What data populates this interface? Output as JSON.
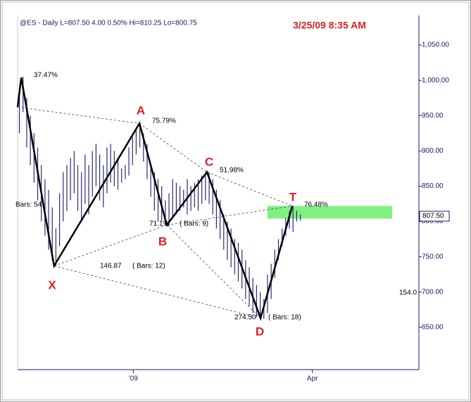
{
  "chart_data": {
    "type": "ohlc",
    "header": "@ES - Daily  L=807.50  4.00  0.50%  Hi=810.25  Lo=800.75",
    "timestamp": "3/25/09 8:35 AM",
    "xlim": [
      0,
      110
    ],
    "ylim": [
      590,
      1092
    ],
    "yticks": [
      {
        "value": 650,
        "label": "650.00"
      },
      {
        "value": 700,
        "label": "700.00"
      },
      {
        "value": 750,
        "label": "750.00"
      },
      {
        "value": 800,
        "label": "800.00"
      },
      {
        "value": 850,
        "label": "850.00"
      },
      {
        "value": 900,
        "label": "900.00"
      },
      {
        "value": 950,
        "label": "950.00"
      },
      {
        "value": 1000,
        "label": "1,000.00"
      },
      {
        "value": 1050,
        "label": "1,050.00"
      }
    ],
    "xticks": [
      {
        "value": 31.7,
        "label": "'09"
      },
      {
        "value": 80.8,
        "label": "Apr"
      }
    ],
    "bar_color": "#2a2a7a",
    "highs": [
      990,
      1005,
      975,
      950,
      925,
      905,
      880,
      860,
      845,
      820,
      790,
      840,
      870,
      880,
      890,
      900,
      880,
      870,
      895,
      880,
      900,
      910,
      895,
      880,
      905,
      910,
      900,
      890,
      875,
      880,
      905,
      920,
      930,
      938,
      925,
      910,
      880,
      870,
      860,
      850,
      830,
      840,
      860,
      855,
      850,
      845,
      860,
      850,
      855,
      860,
      865,
      868,
      870,
      860,
      845,
      830,
      810,
      800,
      790,
      775,
      770,
      760,
      745,
      735,
      720,
      710,
      700,
      690,
      725,
      740,
      760,
      775,
      790,
      805,
      815,
      822,
      815,
      810
    ],
    "lows": [
      925,
      955,
      905,
      880,
      855,
      830,
      800,
      780,
      760,
      745,
      737,
      765,
      800,
      815,
      830,
      840,
      815,
      800,
      825,
      810,
      835,
      850,
      830,
      820,
      840,
      855,
      850,
      845,
      855,
      860,
      865,
      880,
      895,
      905,
      885,
      860,
      835,
      815,
      800,
      800,
      795,
      793,
      805,
      810,
      815,
      820,
      810,
      815,
      820,
      815,
      825,
      830,
      825,
      810,
      790,
      775,
      760,
      745,
      735,
      725,
      715,
      705,
      690,
      680,
      670,
      665,
      662,
      662,
      670,
      690,
      720,
      745,
      765,
      780,
      790,
      785,
      800,
      801
    ],
    "pattern": {
      "color": "#000000",
      "x": [
        0,
        1,
        10,
        33.4,
        40.9,
        51.9,
        66.6,
        75.3
      ],
      "y": [
        962,
        1004,
        737,
        939,
        795,
        870,
        663,
        822
      ]
    },
    "zone": {
      "color": "#80f080",
      "x": [
        68.5,
        102.7
      ],
      "y": [
        804,
        822
      ]
    },
    "last": {
      "value": 807.5,
      "label": "807.50"
    },
    "points": [
      "X",
      "A",
      "B",
      "C",
      "D",
      "T"
    ],
    "annotations": [
      "37.47%",
      "75.79%",
      "51.98%",
      "76.48%",
      "71.1%",
      "( Bars: 9)",
      "146.87",
      "( Bars: 12)",
      "274.50",
      "( Bars: 18)",
      "Bars: 54",
      "154.0"
    ]
  }
}
